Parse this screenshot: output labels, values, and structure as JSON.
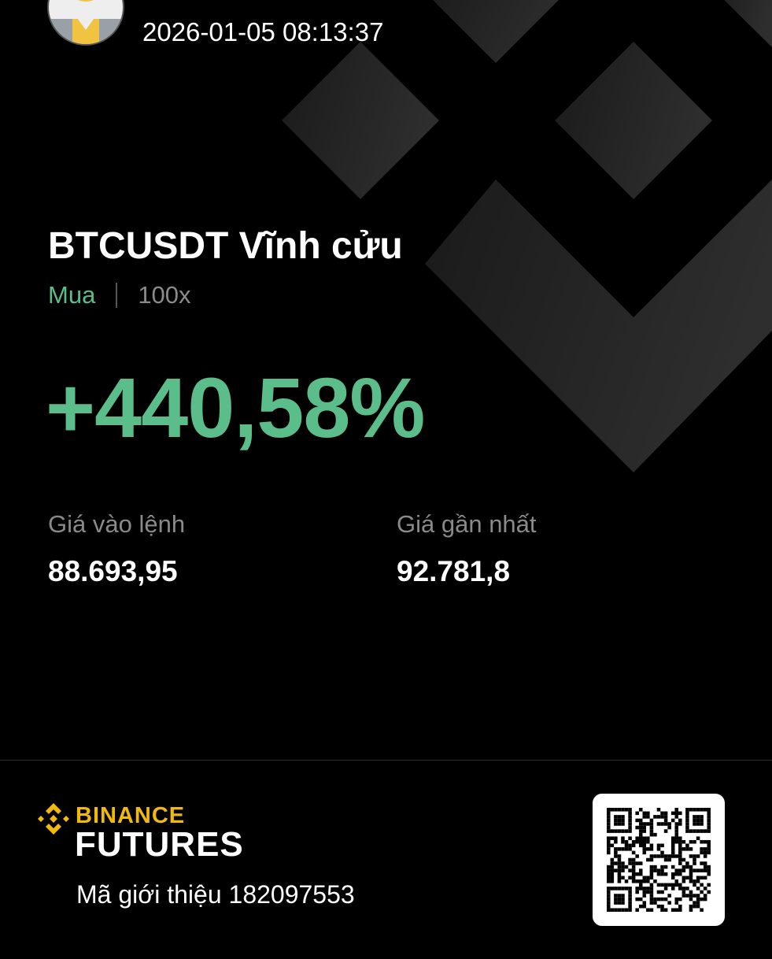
{
  "header": {
    "avatar_icon": "avatar-icon",
    "timestamp": "2026-01-05 08:13:37"
  },
  "position": {
    "symbol_title": "BTCUSDT Vĩnh cửu",
    "side": "Mua",
    "leverage": "100x",
    "pnl_percent": "+440,58%",
    "entry_label": "Giá vào lệnh",
    "entry_price": "88.693,95",
    "last_label": "Giá gần nhất",
    "last_price": "92.781,8"
  },
  "footer": {
    "brand": "BINANCE",
    "product": "FUTURES",
    "referral": "Mã giới thiệu 182097553",
    "qr_icon": "qr-code-icon"
  },
  "colors": {
    "profit": "#5bbd8a",
    "brand": "#f0b90b",
    "background": "#000000"
  }
}
